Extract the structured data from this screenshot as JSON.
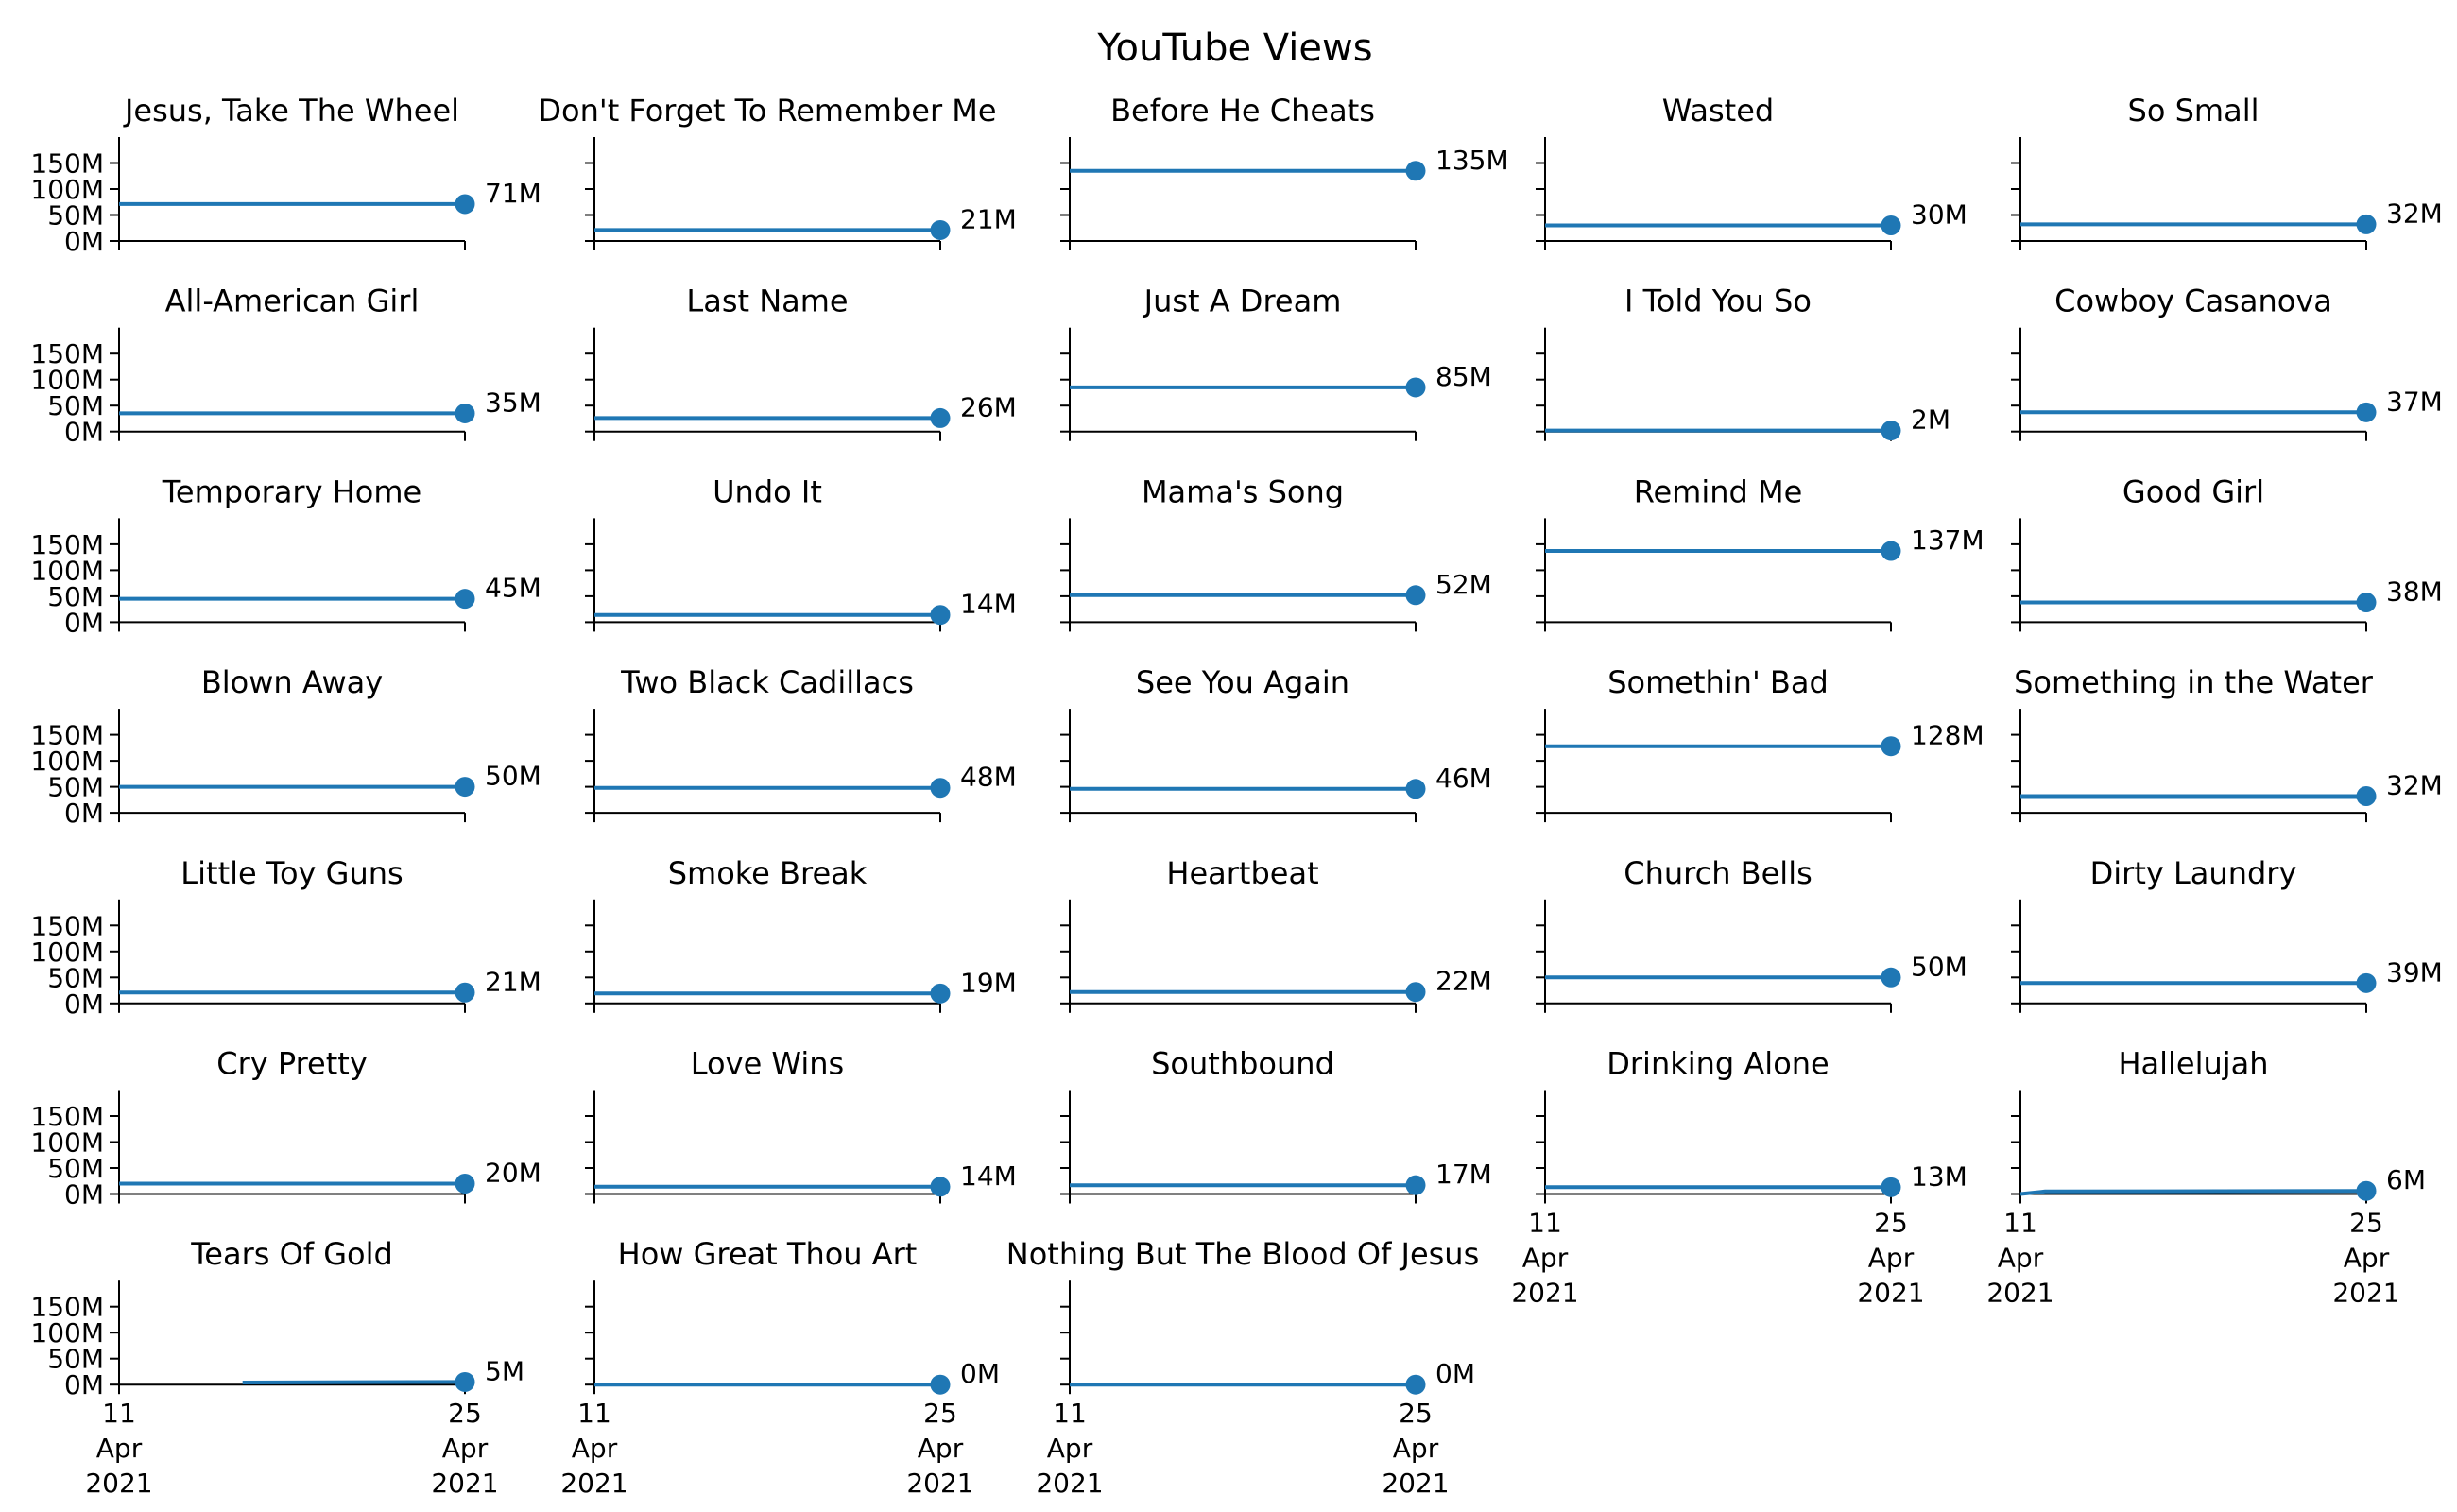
{
  "figure": {
    "title": "YouTube Views"
  },
  "chart_data": {
    "type": "line",
    "layout": "small multiples, 5 columns x 7 rows",
    "title": "YouTube Views",
    "x_range": [
      "2021-04-11",
      "2021-04-25"
    ],
    "x_ticks": [
      {
        "date": "2021-04-11",
        "label": [
          "11",
          "Apr",
          "2021"
        ]
      },
      {
        "date": "2021-04-25",
        "label": [
          "25",
          "Apr",
          "2021"
        ]
      }
    ],
    "y_range": [
      0,
      200000000
    ],
    "y_ticks": [
      {
        "value": 0,
        "label": "0M"
      },
      {
        "value": 50000000,
        "label": "50M"
      },
      {
        "value": 100000000,
        "label": "100M"
      },
      {
        "value": 150000000,
        "label": "150M"
      }
    ],
    "y_tick_labels_shown_on": "first column only",
    "x_tick_labels_shown_on": "bottom panel of each column",
    "grid": false,
    "legend": "none",
    "line_color": "#1f77b4",
    "marker": "circle at last point with end-value label",
    "series": [
      {
        "name": "Jesus, Take The Wheel",
        "x": [
          "2021-04-11",
          "2021-04-25"
        ],
        "y": [
          71000000,
          71000000
        ],
        "end_label": "71M"
      },
      {
        "name": "Don't Forget To Remember Me",
        "x": [
          "2021-04-11",
          "2021-04-25"
        ],
        "y": [
          21000000,
          21000000
        ],
        "end_label": "21M"
      },
      {
        "name": "Before He Cheats",
        "x": [
          "2021-04-11",
          "2021-04-25"
        ],
        "y": [
          135000000,
          135000000
        ],
        "end_label": "135M"
      },
      {
        "name": "Wasted",
        "x": [
          "2021-04-11",
          "2021-04-25"
        ],
        "y": [
          30000000,
          30000000
        ],
        "end_label": "30M"
      },
      {
        "name": "So Small",
        "x": [
          "2021-04-11",
          "2021-04-25"
        ],
        "y": [
          32000000,
          32000000
        ],
        "end_label": "32M"
      },
      {
        "name": "All-American Girl",
        "x": [
          "2021-04-11",
          "2021-04-25"
        ],
        "y": [
          35000000,
          35000000
        ],
        "end_label": "35M"
      },
      {
        "name": "Last Name",
        "x": [
          "2021-04-11",
          "2021-04-25"
        ],
        "y": [
          26000000,
          26000000
        ],
        "end_label": "26M"
      },
      {
        "name": "Just A Dream",
        "x": [
          "2021-04-11",
          "2021-04-25"
        ],
        "y": [
          85000000,
          85000000
        ],
        "end_label": "85M"
      },
      {
        "name": "I Told You So",
        "x": [
          "2021-04-11",
          "2021-04-25"
        ],
        "y": [
          2000000,
          2000000
        ],
        "end_label": "2M"
      },
      {
        "name": "Cowboy Casanova",
        "x": [
          "2021-04-11",
          "2021-04-25"
        ],
        "y": [
          37000000,
          37000000
        ],
        "end_label": "37M"
      },
      {
        "name": "Temporary Home",
        "x": [
          "2021-04-11",
          "2021-04-25"
        ],
        "y": [
          45000000,
          45000000
        ],
        "end_label": "45M"
      },
      {
        "name": "Undo It",
        "x": [
          "2021-04-11",
          "2021-04-25"
        ],
        "y": [
          14000000,
          14000000
        ],
        "end_label": "14M"
      },
      {
        "name": "Mama's Song",
        "x": [
          "2021-04-11",
          "2021-04-25"
        ],
        "y": [
          52000000,
          52000000
        ],
        "end_label": "52M"
      },
      {
        "name": "Remind Me",
        "x": [
          "2021-04-11",
          "2021-04-25"
        ],
        "y": [
          137000000,
          137000000
        ],
        "end_label": "137M"
      },
      {
        "name": "Good Girl",
        "x": [
          "2021-04-11",
          "2021-04-25"
        ],
        "y": [
          38000000,
          38000000
        ],
        "end_label": "38M"
      },
      {
        "name": "Blown Away",
        "x": [
          "2021-04-11",
          "2021-04-25"
        ],
        "y": [
          50000000,
          50000000
        ],
        "end_label": "50M"
      },
      {
        "name": "Two Black Cadillacs",
        "x": [
          "2021-04-11",
          "2021-04-25"
        ],
        "y": [
          48000000,
          48000000
        ],
        "end_label": "48M"
      },
      {
        "name": "See You Again",
        "x": [
          "2021-04-11",
          "2021-04-25"
        ],
        "y": [
          46000000,
          46000000
        ],
        "end_label": "46M"
      },
      {
        "name": "Somethin' Bad",
        "x": [
          "2021-04-11",
          "2021-04-25"
        ],
        "y": [
          128000000,
          128000000
        ],
        "end_label": "128M"
      },
      {
        "name": "Something in the Water",
        "x": [
          "2021-04-11",
          "2021-04-25"
        ],
        "y": [
          32000000,
          32000000
        ],
        "end_label": "32M"
      },
      {
        "name": "Little Toy Guns",
        "x": [
          "2021-04-11",
          "2021-04-25"
        ],
        "y": [
          21000000,
          21000000
        ],
        "end_label": "21M"
      },
      {
        "name": "Smoke Break",
        "x": [
          "2021-04-11",
          "2021-04-25"
        ],
        "y": [
          19000000,
          19000000
        ],
        "end_label": "19M"
      },
      {
        "name": "Heartbeat",
        "x": [
          "2021-04-11",
          "2021-04-25"
        ],
        "y": [
          22000000,
          22000000
        ],
        "end_label": "22M"
      },
      {
        "name": "Church Bells",
        "x": [
          "2021-04-11",
          "2021-04-25"
        ],
        "y": [
          50000000,
          50000000
        ],
        "end_label": "50M"
      },
      {
        "name": "Dirty Laundry",
        "x": [
          "2021-04-11",
          "2021-04-25"
        ],
        "y": [
          39000000,
          39000000
        ],
        "end_label": "39M"
      },
      {
        "name": "Cry Pretty",
        "x": [
          "2021-04-11",
          "2021-04-25"
        ],
        "y": [
          20000000,
          20000000
        ],
        "end_label": "20M"
      },
      {
        "name": "Love Wins",
        "x": [
          "2021-04-11",
          "2021-04-25"
        ],
        "y": [
          14000000,
          14000000
        ],
        "end_label": "14M"
      },
      {
        "name": "Southbound",
        "x": [
          "2021-04-11",
          "2021-04-25"
        ],
        "y": [
          17000000,
          17000000
        ],
        "end_label": "17M"
      },
      {
        "name": "Drinking Alone",
        "x": [
          "2021-04-11",
          "2021-04-25"
        ],
        "y": [
          13000000,
          13000000
        ],
        "end_label": "13M"
      },
      {
        "name": "Hallelujah",
        "x": [
          "2021-04-11",
          "2021-04-12",
          "2021-04-25"
        ],
        "y": [
          0,
          5000000,
          6000000
        ],
        "end_label": "6M"
      },
      {
        "name": "Tears Of Gold",
        "x": [
          "2021-04-16",
          "2021-04-25"
        ],
        "y": [
          4000000,
          5000000
        ],
        "end_label": "5M"
      },
      {
        "name": "How Great Thou Art",
        "x": [
          "2021-04-11",
          "2021-04-25"
        ],
        "y": [
          0,
          0
        ],
        "end_label": "0M"
      },
      {
        "name": "Nothing But The Blood Of Jesus",
        "x": [
          "2021-04-11",
          "2021-04-25"
        ],
        "y": [
          0,
          0
        ],
        "end_label": "0M"
      }
    ]
  }
}
